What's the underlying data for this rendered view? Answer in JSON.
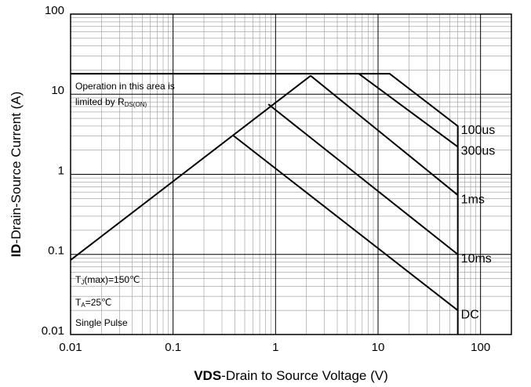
{
  "chart_data": {
    "type": "line",
    "x_label": {
      "bold": "VDS",
      "rest": "-Drain to Source Voltage (V)"
    },
    "y_label": {
      "bold": "ID",
      "rest": "-Drain-Source Current (A)"
    },
    "xlog": true,
    "ylog": true,
    "grid": true,
    "minor_grid": true,
    "xlim": [
      0.01,
      200
    ],
    "ylim": [
      0.01,
      100
    ],
    "xticks": [
      0.01,
      0.1,
      1,
      10,
      100
    ],
    "yticks": [
      0.01,
      0.1,
      1,
      10,
      100
    ],
    "series": [
      {
        "name": "100us",
        "color": "#000000",
        "x": [
          0.01,
          13,
          60,
          60
        ],
        "values": [
          18,
          18,
          4,
          0.01
        ]
      },
      {
        "name": "300us",
        "color": "#000000",
        "x": [
          6.5,
          60
        ],
        "values": [
          18,
          2.2
        ]
      },
      {
        "name": "1ms",
        "color": "#000000",
        "x": [
          2.2,
          60
        ],
        "values": [
          17,
          0.55
        ]
      },
      {
        "name": "10ms",
        "color": "#000000",
        "x": [
          0.85,
          60
        ],
        "values": [
          7.5,
          0.1
        ]
      },
      {
        "name": "DC",
        "color": "#000000",
        "x": [
          0.38,
          60
        ],
        "values": [
          3.1,
          0.02
        ]
      },
      {
        "name": null,
        "color": "#000000",
        "x": [
          0.01,
          2.2
        ],
        "values": [
          0.085,
          17
        ]
      }
    ],
    "annotations": [
      {
        "parts": [
          "Operation in this area is"
        ]
      },
      {
        "parts": [
          "limited by R",
          "DS(ON)"
        ]
      },
      {
        "parts": [
          "T",
          "J",
          "(max)=150℃"
        ]
      },
      {
        "parts": [
          "T",
          "A",
          "=25℃"
        ]
      },
      {
        "parts": [
          "Single Pulse"
        ]
      }
    ]
  }
}
